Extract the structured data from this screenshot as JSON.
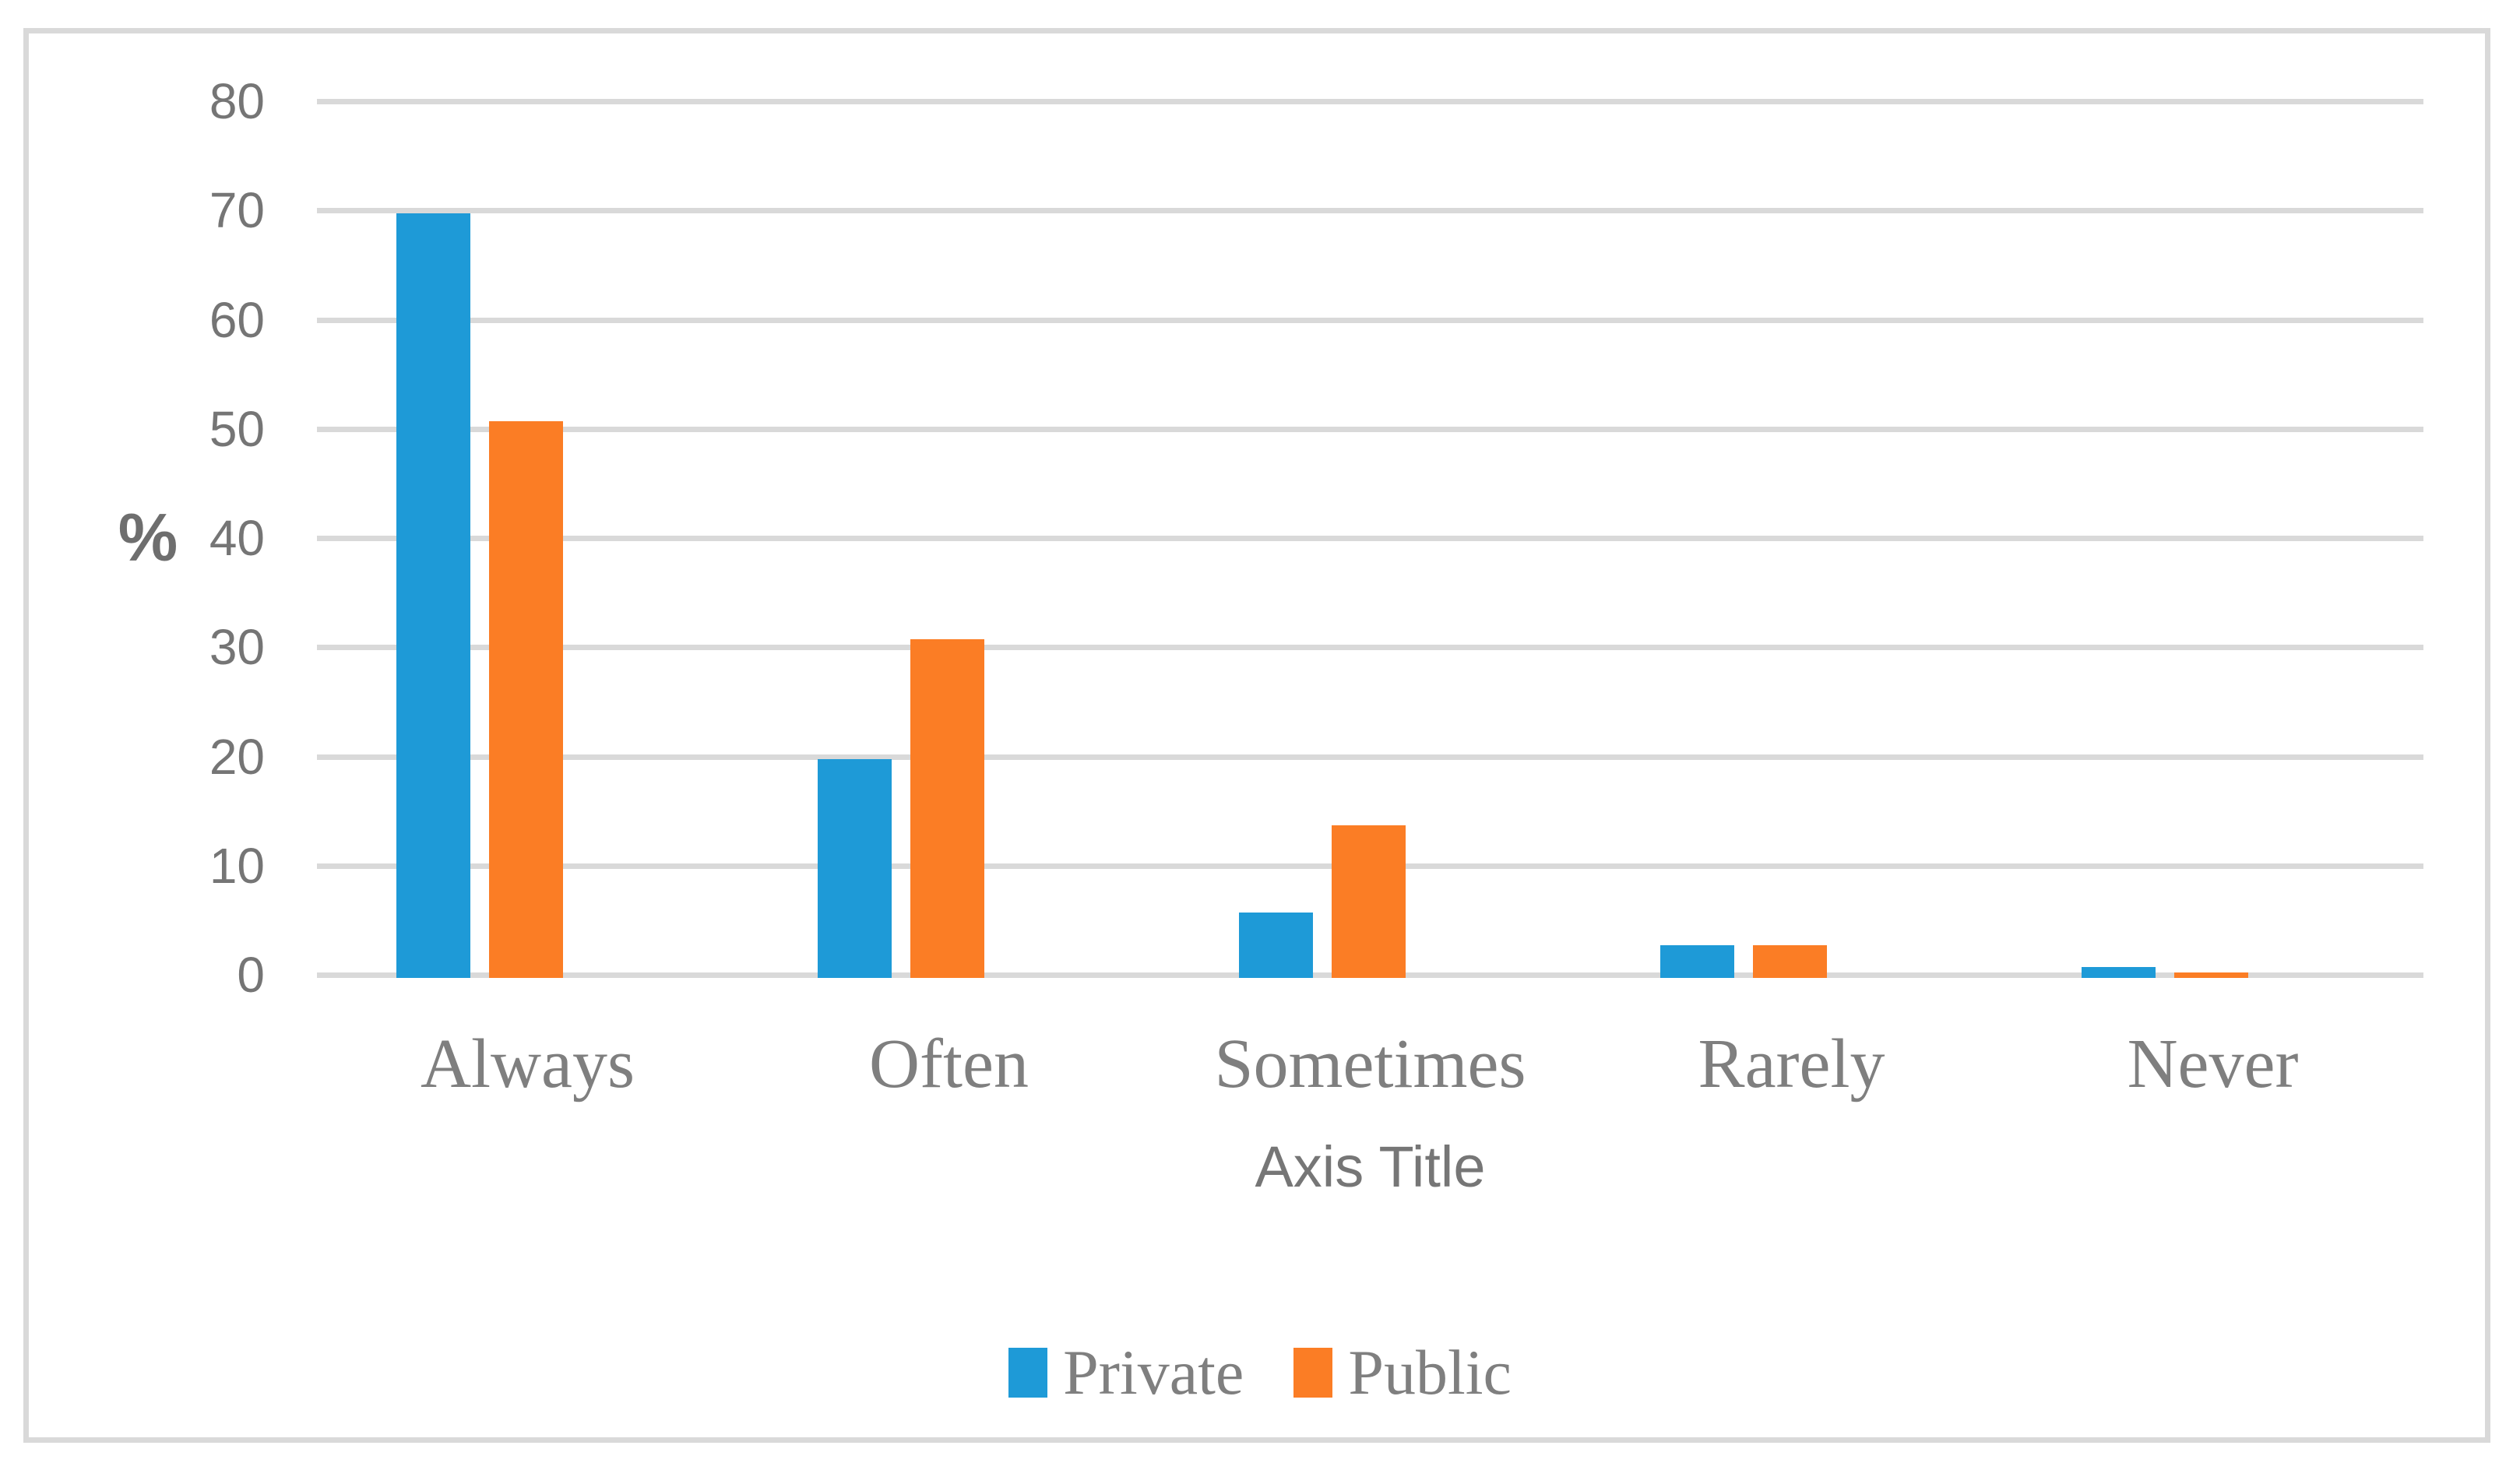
{
  "chart_data": {
    "type": "bar",
    "title": "",
    "categories": [
      "Always",
      "Often",
      "Sometimes",
      "Rarely",
      "Never"
    ],
    "series": [
      {
        "name": "Private",
        "color": "#1E9AD7",
        "values": [
          70,
          20,
          6,
          3,
          1
        ]
      },
      {
        "name": "Public",
        "color": "#FB7D25",
        "values": [
          51,
          31,
          14,
          3,
          0.5
        ]
      }
    ],
    "xlabel": "Axis Title",
    "ylabel": "%",
    "ylim": [
      0,
      80
    ],
    "yticks": [
      0,
      10,
      20,
      30,
      40,
      50,
      60,
      70,
      80
    ],
    "grid": true,
    "legend_position": "bottom",
    "colors": {
      "gridline": "#D9D9D9",
      "frame": "#D9D9D9",
      "tick_label": "#757575",
      "category_label": "#7F7F7F",
      "axis_title": "#767676",
      "background": "#FFFFFF"
    }
  }
}
